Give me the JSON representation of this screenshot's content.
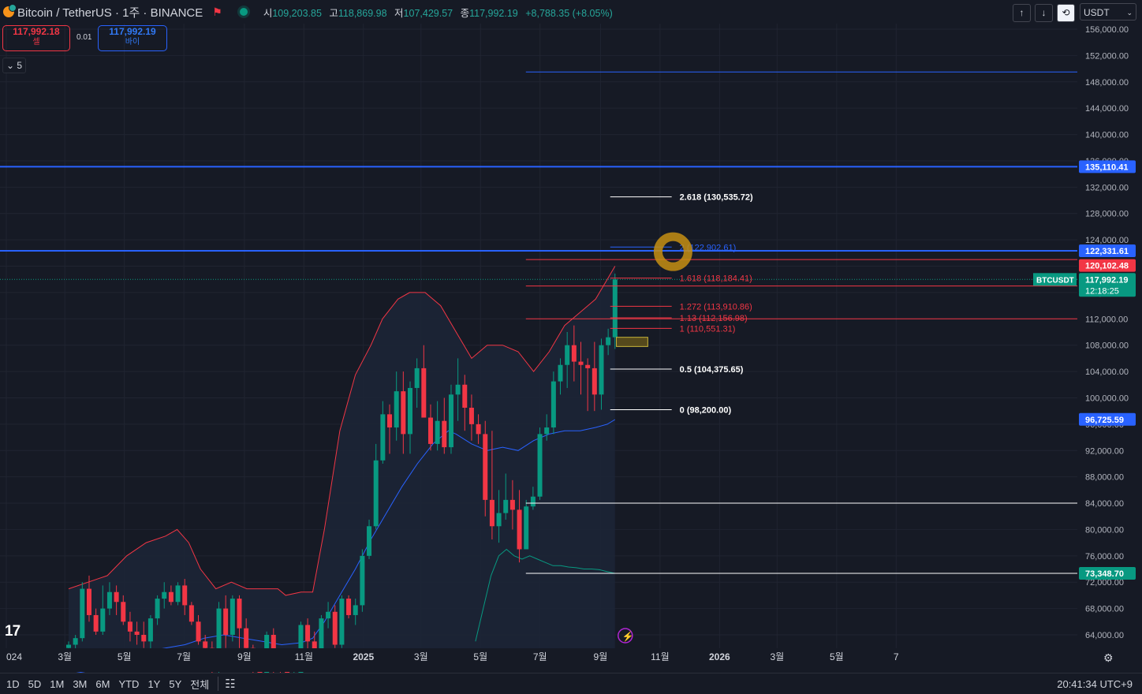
{
  "header": {
    "symbol_label": "Bitcoin / TetherUS · 1주 · BINANCE",
    "ohlc": [
      {
        "k": "시",
        "v": "109,203.85"
      },
      {
        "k": "고",
        "v": "118,869.98"
      },
      {
        "k": "저",
        "v": "107,429.57"
      },
      {
        "k": "종",
        "v": "117,992.19"
      }
    ],
    "change": "+8,788.35 (+8.05%)"
  },
  "trade": {
    "sell_price": "117,992.18",
    "sell_label": "셀",
    "spread": "0.01",
    "buy_price": "117,992.19",
    "buy_label": "바이"
  },
  "indicator_toggle": "5",
  "toolbar": {
    "up": "↑",
    "down": "↓",
    "refresh": "⟲",
    "currency": "USDT"
  },
  "timeframes": [
    "1D",
    "5D",
    "1M",
    "3M",
    "6M",
    "YTD",
    "1Y",
    "5Y",
    "전체"
  ],
  "clock": "20:41:34 UTC+9",
  "colors": {
    "up": "#089981",
    "down": "#f23645",
    "blue": "#2962ff",
    "band_upper": "#f23645",
    "band_mid": "#2962ff",
    "band_lower": "#089981",
    "fib_white": "#ffffff",
    "fib_red": "#f23645",
    "fib_blue": "#2962ff"
  },
  "chart_data": {
    "type": "candlestick",
    "interval": "weekly",
    "symbol": "BTCUSDT",
    "y_ticks": [
      "156,000.00",
      "152,000.00",
      "148,000.00",
      "144,000.00",
      "140,000.00",
      "136,000.00",
      "132,000.00",
      "128,000.00",
      "124,000.00",
      "120,000.00",
      "116,000.00",
      "112,000.00",
      "108,000.00",
      "104,000.00",
      "100,000.00",
      "96,000.00",
      "92,000.00",
      "88,000.00",
      "84,000.00",
      "80,000.00",
      "76,000.00",
      "72,000.00",
      "68,000.00",
      "64,000.00"
    ],
    "y_tick_values": [
      156000,
      152000,
      148000,
      144000,
      140000,
      136000,
      132000,
      128000,
      124000,
      120000,
      116000,
      112000,
      108000,
      104000,
      100000,
      96000,
      92000,
      88000,
      84000,
      80000,
      76000,
      72000,
      68000,
      64000
    ],
    "x_ticks": [
      "024",
      "3월",
      "5월",
      "7월",
      "9월",
      "11월",
      "2025",
      "3월",
      "5월",
      "7월",
      "9월",
      "11월",
      "2026",
      "3월",
      "5월",
      "7"
    ],
    "x_tick_dates": [
      "2024-01-01",
      "2024-03-01",
      "2024-05-01",
      "2024-07-01",
      "2024-09-01",
      "2024-11-01",
      "2025-01-01",
      "2025-03-01",
      "2025-05-01",
      "2025-07-01",
      "2025-09-01",
      "2025-11-01",
      "2026-01-01",
      "2026-03-01",
      "2026-05-01",
      "2026-07-01"
    ],
    "candles_ohlc": [
      [
        62000,
        63000,
        61000,
        62500
      ],
      [
        62500,
        64000,
        61500,
        63500
      ],
      [
        63500,
        72000,
        63000,
        71000
      ],
      [
        71000,
        73000,
        66000,
        67000
      ],
      [
        67000,
        68000,
        64000,
        64500
      ],
      [
        64500,
        71500,
        64000,
        68000
      ],
      [
        68000,
        72000,
        67000,
        70500
      ],
      [
        70500,
        71500,
        67000,
        69000
      ],
      [
        69000,
        70000,
        65500,
        66000
      ],
      [
        66000,
        67500,
        63000,
        64500
      ],
      [
        64500,
        66000,
        62500,
        64000
      ],
      [
        64000,
        66000,
        62000,
        63000
      ],
      [
        63000,
        67000,
        61500,
        66500
      ],
      [
        66500,
        70000,
        65500,
        69500
      ],
      [
        69500,
        72000,
        68000,
        70500
      ],
      [
        70500,
        71500,
        68500,
        69000
      ],
      [
        69000,
        72000,
        68500,
        71500
      ],
      [
        71500,
        72500,
        67000,
        68500
      ],
      [
        68500,
        69000,
        65500,
        66000
      ],
      [
        66000,
        67000,
        62500,
        63000
      ],
      [
        63000,
        64000,
        59000,
        62000
      ],
      [
        62000,
        63000,
        57000,
        58500
      ],
      [
        58500,
        69000,
        58000,
        68000
      ],
      [
        68000,
        70000,
        62000,
        64000
      ],
      [
        64000,
        70000,
        63000,
        69500
      ],
      [
        69500,
        70000,
        62000,
        65000
      ],
      [
        65000,
        66500,
        59500,
        62000
      ],
      [
        62000,
        62500,
        58000,
        59500
      ],
      [
        59500,
        61500,
        56500,
        57500
      ],
      [
        57500,
        64500,
        55500,
        64000
      ],
      [
        64000,
        65000,
        58000,
        59000
      ],
      [
        59000,
        61000,
        57500,
        58500
      ],
      [
        58500,
        60000,
        54000,
        55000
      ],
      [
        55000,
        58500,
        53500,
        58000
      ],
      [
        58000,
        66000,
        57500,
        65500
      ],
      [
        65500,
        66500,
        61500,
        63000
      ],
      [
        63000,
        64500,
        59000,
        61500
      ],
      [
        61500,
        67000,
        61000,
        66500
      ],
      [
        66500,
        69000,
        65000,
        67500
      ],
      [
        67500,
        68500,
        62000,
        62500
      ],
      [
        62500,
        70000,
        62000,
        69500
      ],
      [
        69500,
        70000,
        66500,
        67000
      ],
      [
        67000,
        69500,
        65500,
        68500
      ],
      [
        68500,
        77000,
        67500,
        76000
      ],
      [
        76000,
        81500,
        75500,
        80500
      ],
      [
        80500,
        93000,
        80000,
        90500
      ],
      [
        90500,
        99500,
        90000,
        97500
      ],
      [
        97500,
        99000,
        91500,
        95500
      ],
      [
        95500,
        104000,
        93500,
        101000
      ],
      [
        101000,
        104000,
        91500,
        94500
      ],
      [
        94500,
        102500,
        91500,
        101500
      ],
      [
        101500,
        106000,
        98500,
        104500
      ],
      [
        104500,
        108000,
        99000,
        97000
      ],
      [
        97000,
        99000,
        92000,
        93000
      ],
      [
        93000,
        99500,
        92000,
        96500
      ],
      [
        96500,
        100000,
        91500,
        92500
      ],
      [
        92500,
        102000,
        91500,
        100500
      ],
      [
        100500,
        106000,
        96500,
        102000
      ],
      [
        102000,
        103500,
        95000,
        98500
      ],
      [
        98500,
        100500,
        93500,
        96000
      ],
      [
        96000,
        97500,
        93000,
        94500
      ],
      [
        94500,
        96500,
        82000,
        84500
      ],
      [
        84500,
        95000,
        78500,
        80500
      ],
      [
        80500,
        86000,
        78000,
        82500
      ],
      [
        82500,
        88500,
        81500,
        84500
      ],
      [
        84500,
        87500,
        80000,
        83000
      ],
      [
        83000,
        86000,
        75000,
        77000
      ],
      [
        77000,
        84500,
        77000,
        83500
      ],
      [
        83500,
        86500,
        83000,
        85000
      ],
      [
        85000,
        95500,
        84500,
        94500
      ],
      [
        94500,
        97500,
        93500,
        95500
      ],
      [
        95500,
        104000,
        94500,
        102500
      ],
      [
        102500,
        106000,
        100500,
        105000
      ],
      [
        105000,
        110000,
        101500,
        108000
      ],
      [
        108000,
        111000,
        102500,
        105500
      ],
      [
        105500,
        108500,
        100500,
        105000
      ],
      [
        105000,
        106000,
        98000,
        104500
      ],
      [
        104500,
        108500,
        98000,
        100500
      ],
      [
        100500,
        109000,
        98200,
        108000
      ],
      [
        108000,
        110500,
        106500,
        109200
      ],
      [
        109200,
        118870,
        107430,
        117992
      ]
    ],
    "bands": {
      "upper_color": "#f23645",
      "mid_color": "#2962ff",
      "lower_color": "#089981",
      "upper_points": [
        [
          0,
          71000
        ],
        [
          10,
          73000
        ],
        [
          15,
          76000
        ],
        [
          20,
          78000
        ],
        [
          25,
          79000
        ],
        [
          28,
          80000
        ],
        [
          31,
          78000
        ],
        [
          34,
          74000
        ],
        [
          38,
          71000
        ],
        [
          42,
          72000
        ],
        [
          46,
          71000
        ],
        [
          50,
          71000
        ],
        [
          54,
          71000
        ],
        [
          56,
          70000
        ],
        [
          60,
          70500
        ],
        [
          63,
          70500
        ],
        [
          66,
          80000
        ],
        [
          70,
          95000
        ],
        [
          74,
          103500
        ],
        [
          78,
          108000
        ],
        [
          81,
          112000
        ],
        [
          85,
          115000
        ],
        [
          88,
          116000
        ],
        [
          92,
          116000
        ],
        [
          96,
          114000
        ],
        [
          100,
          110000
        ],
        [
          104,
          106000
        ],
        [
          108,
          108000
        ],
        [
          112,
          108000
        ],
        [
          116,
          107000
        ],
        [
          120,
          104000
        ],
        [
          124,
          107000
        ],
        [
          128,
          111000
        ],
        [
          132,
          113000
        ],
        [
          136,
          115000
        ],
        [
          139,
          118000
        ],
        [
          141,
          120000
        ]
      ],
      "mid_points": [
        [
          0,
          58000
        ],
        [
          10,
          59000
        ],
        [
          15,
          60500
        ],
        [
          20,
          61500
        ],
        [
          25,
          62000
        ],
        [
          30,
          62500
        ],
        [
          35,
          63500
        ],
        [
          40,
          64000
        ],
        [
          45,
          63500
        ],
        [
          50,
          63000
        ],
        [
          55,
          62500
        ],
        [
          60,
          62800
        ],
        [
          63,
          63500
        ],
        [
          66,
          66000
        ],
        [
          70,
          70000
        ],
        [
          74,
          74000
        ],
        [
          78,
          78500
        ],
        [
          82,
          82500
        ],
        [
          86,
          86500
        ],
        [
          90,
          90000
        ],
        [
          94,
          93000
        ],
        [
          98,
          95000
        ],
        [
          100,
          94500
        ],
        [
          104,
          93000
        ],
        [
          108,
          92000
        ],
        [
          112,
          92500
        ],
        [
          116,
          92000
        ],
        [
          120,
          93500
        ],
        [
          124,
          94500
        ],
        [
          128,
          95000
        ],
        [
          132,
          95000
        ],
        [
          136,
          95500
        ],
        [
          139,
          96000
        ],
        [
          141,
          96700
        ]
      ],
      "lower_points": [
        [
          105,
          63000
        ],
        [
          107,
          68000
        ],
        [
          109,
          73000
        ],
        [
          111,
          76000
        ],
        [
          113,
          77000
        ],
        [
          115,
          76000
        ],
        [
          117,
          75500
        ],
        [
          119,
          76000
        ],
        [
          121,
          75500
        ],
        [
          123,
          75000
        ],
        [
          125,
          74500
        ],
        [
          127,
          74500
        ],
        [
          129,
          74300
        ],
        [
          131,
          74200
        ],
        [
          133,
          74000
        ],
        [
          135,
          74000
        ],
        [
          137,
          73900
        ],
        [
          139,
          73600
        ],
        [
          141,
          73349
        ]
      ]
    },
    "horizontal_lines": [
      {
        "price": 149500,
        "color": "#2962ff",
        "start_index": 118,
        "width": 1
      },
      {
        "price": 135110.41,
        "color": "#2962ff",
        "start_index": 0,
        "width": 2
      },
      {
        "price": 122331.61,
        "color": "#2962ff",
        "start_index": 0,
        "width": 2
      },
      {
        "price": 121000,
        "color": "#f23645",
        "start_index": 118,
        "width": 1
      },
      {
        "price": 117000,
        "color": "#f23645",
        "start_index": 118,
        "width": 1
      },
      {
        "price": 112000,
        "color": "#f23645",
        "start_index": 118,
        "width": 1
      },
      {
        "price": 84000,
        "color": "#ffffff",
        "start_index": 118,
        "width": 1
      },
      {
        "price": 73348.7,
        "color": "#ffffff",
        "start_index": 118,
        "width": 1
      }
    ],
    "fibonacci": [
      {
        "ratio": "2.618",
        "price": "130,535.72",
        "value": 130535.72,
        "color": "#ffffff"
      },
      {
        "ratio": "2",
        "price": "122,902.61",
        "value": 122902.61,
        "color": "#2962ff"
      },
      {
        "ratio": "1.618",
        "price": "118,184.41",
        "value": 118184.41,
        "color": "#f23645"
      },
      {
        "ratio": "1.272",
        "price": "113,910.86",
        "value": 113910.86,
        "color": "#f23645"
      },
      {
        "ratio": "1.13",
        "price": "112,156.98",
        "value": 112156.98,
        "color": "#f23645"
      },
      {
        "ratio": "1",
        "price": "110,551.31",
        "value": 110551.31,
        "color": "#f23645"
      },
      {
        "ratio": "0.5",
        "price": "104,375.65",
        "value": 104375.65,
        "color": "#ffffff"
      },
      {
        "ratio": "0",
        "price": "98,200.00",
        "value": 98200.0,
        "color": "#ffffff"
      }
    ],
    "highlight_box": {
      "price_top": 109200,
      "price_bottom": 107800
    },
    "circle_mark_price": 122200,
    "price_labels": [
      {
        "text": "135,110.41",
        "value": 135110.41,
        "bg": "#2962ff",
        "fg": "#ffffff"
      },
      {
        "text": "122,331.61",
        "value": 122331.61,
        "bg": "#2962ff",
        "fg": "#ffffff"
      },
      {
        "text": "120,102.48",
        "value": 120102.48,
        "bg": "#f23645",
        "fg": "#ffffff"
      },
      {
        "text": "96,725.59",
        "value": 96725.59,
        "bg": "#2962ff",
        "fg": "#ffffff"
      },
      {
        "text": "73,348.70",
        "value": 73348.7,
        "bg": "#089981",
        "fg": "#ffffff"
      }
    ],
    "last_price": {
      "symbol_tag": "BTCUSDT",
      "price": "117,992.19",
      "value": 117992.19,
      "countdown": "12:18:25"
    }
  }
}
